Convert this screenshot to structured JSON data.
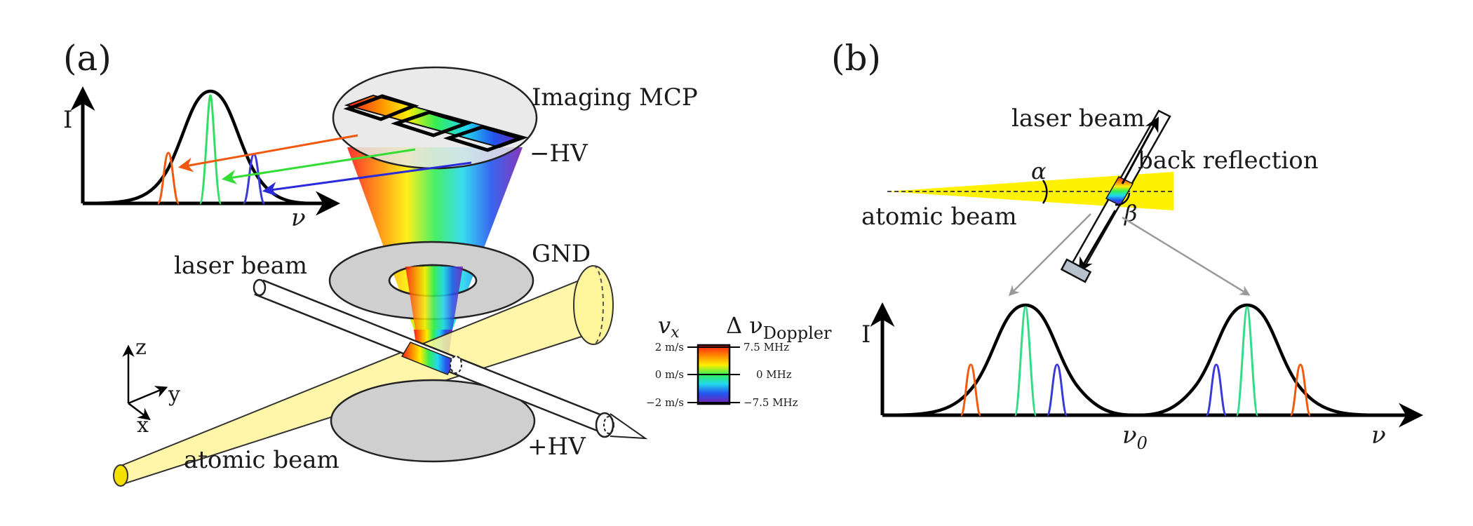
{
  "panel_a": {
    "label": "(a)",
    "imaging_mcp": "Imaging MCP",
    "minus_hv": "−HV",
    "gnd": "GND",
    "plus_hv": "+HV",
    "laser_beam": "laser beam",
    "atomic_beam": "atomic beam",
    "spectrum": {
      "intensity_label": "I",
      "frequency_label": "ν"
    },
    "axes": {
      "z": "z",
      "y": "y",
      "x": "x"
    },
    "colorbar": {
      "vx_label": "v",
      "vx_sub": "x",
      "doppler_label": "Δ ν",
      "doppler_sub": "Doppler",
      "left_ticks": [
        "2 m/s",
        "0 m/s",
        "−2 m/s"
      ],
      "right_ticks": [
        "7.5 MHz",
        "0 MHz",
        "−7.5 MHz"
      ]
    }
  },
  "panel_b": {
    "label": "(b)",
    "laser_beam": "laser beam",
    "back_reflection": "back reflection",
    "atomic_beam": "atomic beam",
    "alpha": "α",
    "beta": "β",
    "intensity_label": "I",
    "nu0": "ν",
    "nu0_sub": "0",
    "nu": "ν"
  },
  "colors": {
    "red": "#e8321a",
    "orange": "#f07a10",
    "green": "#33dd55",
    "teal": "#2fd8a0",
    "blue": "#2f5de8",
    "violet": "#6a2ab0",
    "yellow_beam": "#fff47a",
    "plate_gray": "#cfcfcf"
  }
}
